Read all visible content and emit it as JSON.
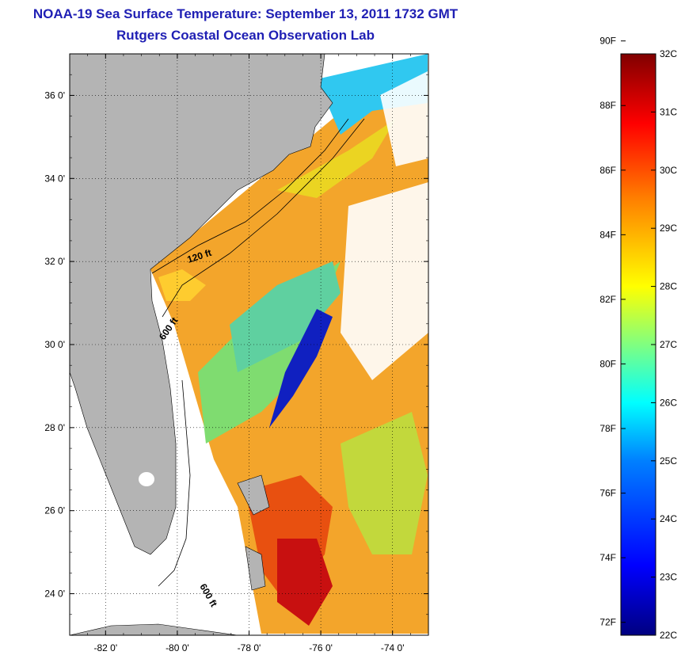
{
  "header": {
    "title": "NOAA-19 Sea Surface Temperature:  September 13, 2011 1732 GMT",
    "subtitle": "Rutgers Coastal Ocean Observation Lab"
  },
  "map": {
    "lat_ticks": [
      "36 0'",
      "34 0'",
      "32 0'",
      "30 0'",
      "28 0'",
      "26 0'",
      "24 0'"
    ],
    "lon_ticks": [
      "-82 0'",
      "-80 0'",
      "-78 0'",
      "-76 0'",
      "-74 0'"
    ],
    "lat_values": [
      36,
      34,
      32,
      30,
      28,
      26,
      24
    ],
    "lon_values": [
      -82,
      -80,
      -78,
      -76,
      -74
    ],
    "lat_range": [
      23,
      37
    ],
    "lon_range": [
      -83,
      -73
    ],
    "contour_labels": [
      "120 ft",
      "600 ft",
      "600 ft"
    ],
    "land_color": "#b4b4b4",
    "no_data_color": "#ffffff"
  },
  "colorbar": {
    "fahrenheit_labels": [
      "90F",
      "88F",
      "86F",
      "84F",
      "82F",
      "80F",
      "78F",
      "76F",
      "74F",
      "72F"
    ],
    "celsius_labels": [
      "32C",
      "31C",
      "30C",
      "29C",
      "28C",
      "27C",
      "26C",
      "25C",
      "24C",
      "23C",
      "22C"
    ],
    "celsius_range": [
      22,
      32
    ],
    "colormap": [
      "#000080",
      "#0000ff",
      "#0080ff",
      "#00ffff",
      "#80ff80",
      "#ffff00",
      "#ff8000",
      "#ff0000",
      "#800000"
    ]
  }
}
